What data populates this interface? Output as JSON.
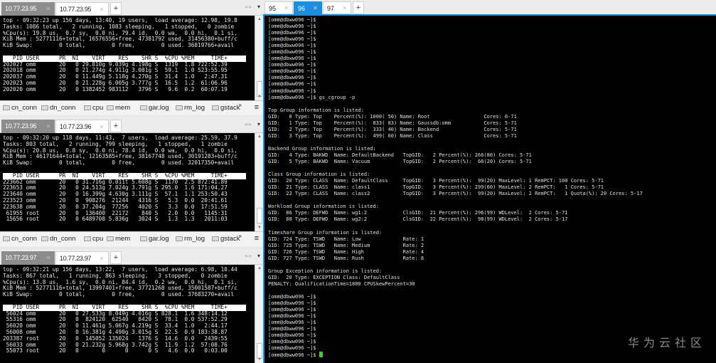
{
  "colors": {
    "accent": "#1a8fe0",
    "cursor": "#22dd22"
  },
  "toolbar_buttons": [
    "cn_conn",
    "dn_conn",
    "cpu",
    "mem",
    "gar.log",
    "rm_log",
    "gstack"
  ],
  "left_panes": [
    {
      "tabs": [
        "10.77.23.95",
        "10.77.23.95"
      ],
      "top_lines": [
        "top - 09:32:23 up 156 days, 13:40, 19 users,  load average: 12.98, 19.8",
        "Tasks: 1086 total,   2 running, 1083 sleeping,   1 stopped,   0 zombie",
        "%Cpu(s): 19.8 us,  0.7 sy,  0.0 ni, 79.4 id,  0.0 wa,  0.0 hi,  0.1 si,",
        "KiB Mem : 52771116+total, 16576556+free, 47381792 used, 31456380+buff/c",
        "KiB Swap:        0 total,        0 free,        0 used. 36819766+avail",
        ""
      ],
      "header": "   PID USER      PR  NI    VIRT    RES    SHR S  %CPU %MEM     TIME+",
      "rows": [
        "202027 omm       20   0 29.810g 9.039g 4.198g S  1319  1.8 722:52.39",
        "202018 omm       20   0 21.274g 4.911g 3.081g S  59.1  1.0 523:55.95",
        "202037 omm       20   0 11.449g 5.118g 4.270g S  31.4  1.0   2:47.31",
        "202023 omm       20   0 21.228g 6.005g 3.777g S  16.5  1.2  61:06.96",
        "202020 omm       20   0 1382452 983112   3796 S   9.6  0.2  60:07.19"
      ]
    },
    {
      "tabs": [
        "10.77.23.96",
        "10.77.23.96"
      ],
      "top_lines": [
        "top - 09:32:20 up 118 days, 11:43,  7 users,  load average: 25.59, 37.9",
        "Tasks: 803 total,   2 running, 799 sleeping,   1 stopped,   1 zombie",
        "%Cpu(s): 20.8 us,  0.8 sy,  0.0 ni, 78.4 id,  0.0 wa,  0.0 hi,  0.0 si,",
        "KiB Mem : 46171644+total, 12163585+free, 38167748 used, 30191283+buff/c",
        "KiB Swap:        0 total,        0 free,        0 used. 32017350+avail",
        ""
      ],
      "header": "   PID USER      PR  NI    VIRT    RES    SHR S  %CPU %MEM     TIME+",
      "rows": [
        "223662 omm       20   0 31.716g 0.011t 5.608g S  1170  2.5 872:41.89",
        "223653 omm       20   0 24.513g 7.024g 3.791g S 295.0  1.6 171:04.27",
        "223640 omm       20   0 16.399g 4.630g 3.111g S  57.1  1.1 253:50.43",
        "223523 omm       20   0  908276  21244   4316 S   5.3  0.0  20:41.61",
        "223638 omm       20   0 37.204g  77256   4020 S   3.3  0.0  17:51.59",
        " 61955 root      20   0  136400  22172    840 S   2.0  0.0   1145:31",
        " 15656 root      20   0 6489708 5.836g   3024 S   1.3  1.3   2011:03"
      ]
    },
    {
      "tabs": [
        "10.77.23.97",
        "10.77.23.97"
      ],
      "top_lines": [
        "top - 09:32:21 up 156 days, 13:22,  7 users,  load average: 6.98, 10.44",
        "Tasks: 867 total,   1 running, 863 sleeping,   3 stopped,   0 zombie",
        "%Cpu(s): 13.8 us,  1.6 sy,  0.0 ni, 84.4 id,  0.2 wa,  0.0 hi,  0.1 si,",
        "KiB Mem : 52771116+total, 13997401+free, 37721268 used, 35001587+buff/c",
        "KiB Swap:        0 total,        0 free,        0 used. 37683270+avail",
        ""
      ],
      "header": "   PID USER      PR  NI    VIRT    RES    SHR S  %CPU %MEM     TIME+",
      "rows": [
        " 56024 omm       20   0 27.533g 8.049g 4.016g S 828.1  1.6 348:14.12",
        " 55316 omm       20   0  824120  62540   8420 S  78.1  0.0 537:52.29",
        " 56020 omm       20   0 11.461g 5.067g 4.219g S  33.4  1.0   2:44.17",
        " 56008 omm       20   0 16.381g 4.490g 3.015g S  22.5  0.9 183:38.87",
        "203387 root      20   0  145052 135024   1376 S  14.6  0.0   2439:55",
        " 56033 omm       20   0 21.232g 5.968g 3.742g S  11.9  1.2  57:08.76",
        " 55073 root      20   0       0      0      0 S   4.6  0.0   0:03.00"
      ]
    }
  ],
  "right": {
    "tabs": [
      {
        "label": "95",
        "active": false
      },
      {
        "label": "96",
        "active": true
      },
      {
        "label": "97",
        "active": false
      }
    ],
    "lines": [
      "[omm@dbww096 ~]$",
      "[omm@dbww096 ~]$",
      "[omm@dbww096 ~]$",
      "[omm@dbww096 ~]$",
      "[omm@dbww096 ~]$",
      "[omm@dbww096 ~]$",
      "[omm@dbww096 ~]$",
      "[omm@dbww096 ~]$",
      "[omm@dbww096 ~]$",
      "[omm@dbww096 ~]$",
      "[omm@dbww096 ~]$",
      "[omm@dbww096 ~]$",
      "[omm@dbww096 ~]$ gs_cgroup -p",
      "",
      "Top Group information is listed:",
      "GID:   0 Type: Top    Percent(%): 1000( 50) Name: Root                  Cores: 0-71",
      "GID:   1 Type: Top    Percent(%):  833( 83) Name: Gaussdb:omm           Cores: 5-71",
      "GID:   2 Type: Top    Percent(%):  333( 40) Name: Backend               Cores: 5-71",
      "GID:   3 Type: Top    Percent(%):  499( 60) Name: Class                 Cores: 5-71",
      "",
      "Backend Group information is listed:",
      "GID:   4 Type: BAKWD  Name: DefaultBackend   TopGID:   2 Percent(%): 266(80) Cores: 5-71",
      "GID:   5 Type: BAKWD  Name: Vacuum           TopGID:   2 Percent(%):  66(20) Cores: 5-71",
      "",
      "Class Group information is listed:",
      "GID:  20 Type: CLASS  Name: DefaultClass     TopGID:   3 Percent(%):  99(20) MaxLevel: 1 RemPCT: 100 Cores: 5-71",
      "GID:  21 Type: CLASS  Name: class1           TopGID:   3 Percent(%): 299(60) MaxLevel: 2 RemPCT:   1 Cores: 5-71",
      "GID:  22 Type: CLASS  Name: class2           TopGID:   3 Percent(%):  99(20) MaxLevel: 2 RemPCT:   1 Quota(%): 20 Cores: 5-17",
      "",
      "Workload Group information is listed:",
      "GID:  86 Type: DEFWD  Name: wg1:2            ClsGID:  21 Percent(%): 296(99) WDLevel:  2 Cores: 5-71",
      "GID:  88 Type: DEFWD  Name: wg2:2            ClsGID:  22 Percent(%):  98(99) WDLevel:  2 Cores: 5-17",
      "",
      "Timeshare Group information is listed:",
      "GID: 724 Type: TSWD   Name: Low              Rate: 1",
      "GID: 725 Type: TSWD   Name: Medium           Rate: 2",
      "GID: 726 Type: TSWD   Name: High             Rate: 4",
      "GID: 727 Type: TSWD   Name: Rush             Rate: 8",
      "",
      "Group Exception information is listed:",
      "GID:  20 Type: EXCEPTION Class: DefaultClass",
      "PENALTY: QualificationTime=1800 CPUSkewPercent=30",
      "",
      "[omm@dbww096 ~]$",
      "[omm@dbww096 ~]$",
      "[omm@dbww096 ~]$",
      "[omm@dbww096 ~]$",
      "[omm@dbww096 ~]$",
      "[omm@dbww096 ~]$",
      "[omm@dbww096 ~]$",
      "[omm@dbww096 ~]$",
      "[omm@dbww096 ~]$"
    ],
    "prompt": "[omm@dbww096 ~]$ "
  },
  "watermark": "华为云社区"
}
